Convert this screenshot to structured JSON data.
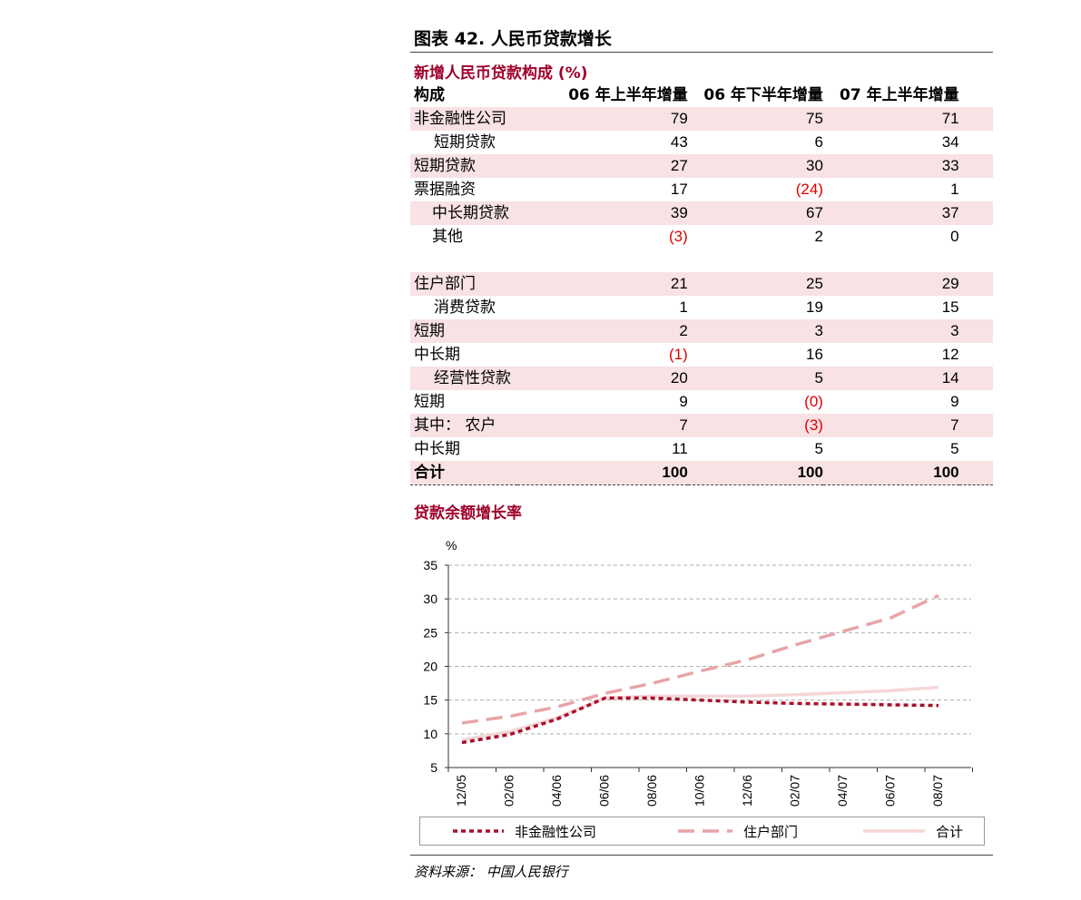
{
  "figure_title": "图表 42. 人民币贷款增长",
  "table": {
    "section_title": "新增人民币贷款构成 (%)",
    "headers": [
      "构成",
      "06 年上半年增量",
      "06 年下半年增量",
      "07 年上半年增量"
    ],
    "rows": [
      {
        "label": "非金融性公司",
        "v": [
          "79",
          "75",
          "71"
        ],
        "neg": [
          false,
          false,
          false
        ],
        "shade": true,
        "indent": 0
      },
      {
        "label": "短期贷款",
        "v": [
          "43",
          "6",
          "34"
        ],
        "neg": [
          false,
          false,
          false
        ],
        "shade": false,
        "indent": 1
      },
      {
        "label": "短期贷款",
        "v": [
          "27",
          "30",
          "33"
        ],
        "neg": [
          false,
          false,
          false
        ],
        "shade": true,
        "indent": 0
      },
      {
        "label": "票据融资",
        "v": [
          "17",
          "(24)",
          "1"
        ],
        "neg": [
          false,
          true,
          false
        ],
        "shade": false,
        "indent": 0
      },
      {
        "label": "中长期贷款",
        "v": [
          "39",
          "67",
          "37"
        ],
        "neg": [
          false,
          false,
          false
        ],
        "shade": true,
        "indent": 2
      },
      {
        "label": "其他",
        "v": [
          "(3)",
          "2",
          "0"
        ],
        "neg": [
          true,
          false,
          false
        ],
        "shade": false,
        "indent": 2
      },
      {
        "label": "",
        "v": [
          "",
          "",
          ""
        ],
        "neg": [
          false,
          false,
          false
        ],
        "shade": false,
        "indent": 0
      },
      {
        "label": "住户部门",
        "v": [
          "21",
          "25",
          "29"
        ],
        "neg": [
          false,
          false,
          false
        ],
        "shade": true,
        "indent": 0
      },
      {
        "label": "消费贷款",
        "v": [
          "1",
          "19",
          "15"
        ],
        "neg": [
          false,
          false,
          false
        ],
        "shade": false,
        "indent": 1
      },
      {
        "label": "短期",
        "v": [
          "2",
          "3",
          "3"
        ],
        "neg": [
          false,
          false,
          false
        ],
        "shade": true,
        "indent": 0
      },
      {
        "label": "中长期",
        "v": [
          "(1)",
          "16",
          "12"
        ],
        "neg": [
          true,
          false,
          false
        ],
        "shade": false,
        "indent": 0
      },
      {
        "label": "经营性贷款",
        "v": [
          "20",
          "5",
          "14"
        ],
        "neg": [
          false,
          false,
          false
        ],
        "shade": true,
        "indent": 1
      },
      {
        "label": "短期",
        "v": [
          "9",
          "(0)",
          "9"
        ],
        "neg": [
          false,
          true,
          false
        ],
        "shade": false,
        "indent": 0
      },
      {
        "label": "其中： 农户",
        "v": [
          "7",
          "(3)",
          "7"
        ],
        "neg": [
          false,
          true,
          false
        ],
        "shade": true,
        "indent": 0
      },
      {
        "label": "中长期",
        "v": [
          "11",
          "5",
          "5"
        ],
        "neg": [
          false,
          false,
          false
        ],
        "shade": false,
        "indent": 0
      }
    ],
    "total": {
      "label": "合计",
      "v": [
        "100",
        "100",
        "100"
      ]
    }
  },
  "chart_section_title": "贷款余额增长率",
  "chart_data": {
    "type": "line",
    "ylabel": "%",
    "ylim": [
      5,
      35
    ],
    "yticks": [
      "5",
      "10",
      "15",
      "20",
      "25",
      "30",
      "35"
    ],
    "categories": [
      "12/05",
      "02/06",
      "04/06",
      "06/06",
      "08/06",
      "10/06",
      "12/06",
      "02/07",
      "04/07",
      "06/07",
      "08/07"
    ],
    "series": [
      {
        "name": "非金融性公司",
        "color": "#a8102c",
        "style": "dotted",
        "values": [
          8.7,
          9.9,
          12.2,
          15.3,
          15.3,
          15.0,
          14.7,
          14.5,
          14.4,
          14.3,
          14.2
        ]
      },
      {
        "name": "住户部门",
        "color": "#e8a4a8",
        "style": "dashed",
        "values": [
          11.6,
          12.6,
          14.0,
          16.0,
          17.5,
          19.3,
          21.0,
          23.2,
          25.2,
          27.2,
          30.5
        ]
      },
      {
        "name": "合计",
        "color": "#f5d6d8",
        "style": "solid",
        "values": [
          9.1,
          10.3,
          12.4,
          15.3,
          15.6,
          15.6,
          15.6,
          15.8,
          16.1,
          16.4,
          16.9
        ]
      }
    ],
    "grid": true,
    "legend_position": "bottom"
  },
  "source": "资料来源： 中国人民银行"
}
